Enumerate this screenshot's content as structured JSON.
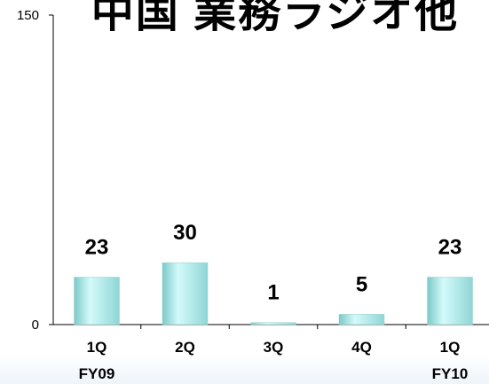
{
  "chart_data": {
    "type": "bar",
    "title": "中国 業務ラジオ他",
    "categories": [
      [
        "1Q",
        "FY09"
      ],
      [
        "2Q",
        ""
      ],
      [
        "3Q",
        ""
      ],
      [
        "4Q",
        ""
      ],
      [
        "1Q",
        "FY10"
      ]
    ],
    "values": [
      23,
      30,
      1,
      5,
      23
    ],
    "ylim": [
      0,
      150
    ],
    "yticks": [
      0,
      150
    ],
    "xlabel": "",
    "ylabel": "",
    "grid": false,
    "bar_color": "#a8e6e6"
  }
}
